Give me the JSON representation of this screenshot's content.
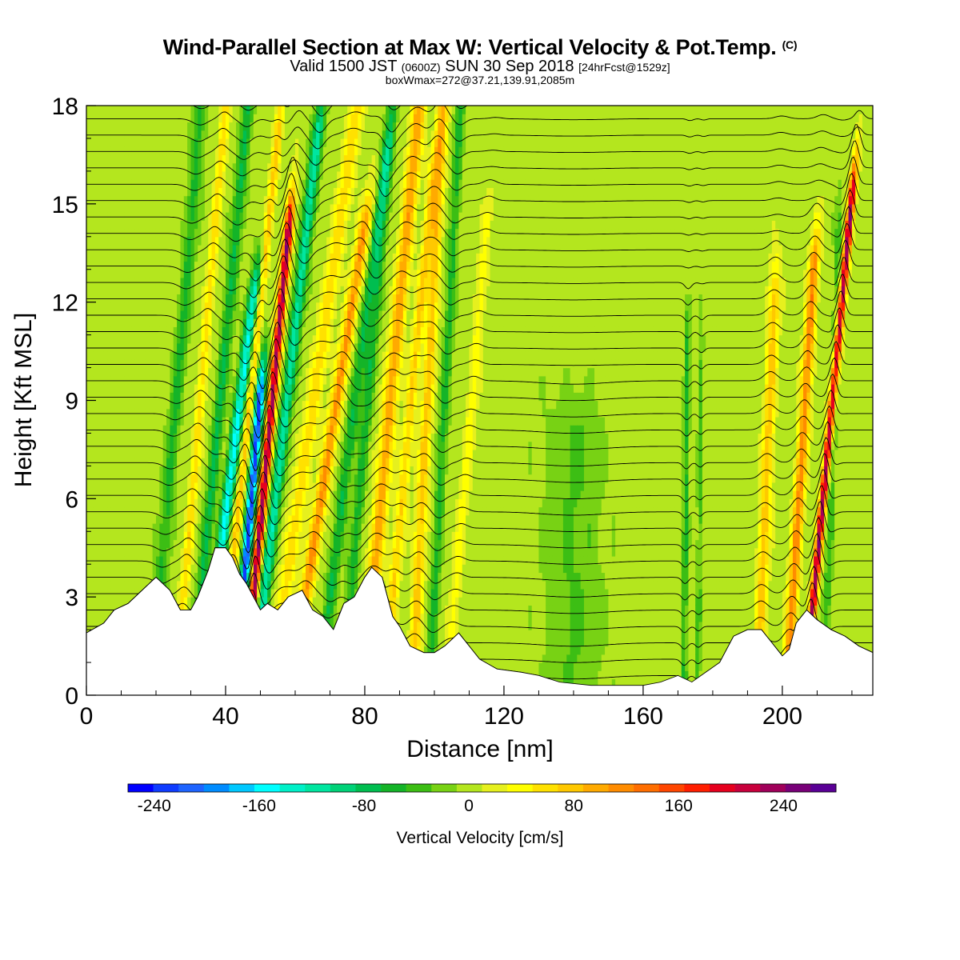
{
  "title": {
    "main": "Wind-Parallel Section at Max W: Vertical Velocity & Pot.Temp.",
    "copyright": "(C)",
    "valid_prefix": "Valid 1500 JST",
    "valid_utc": "(0600Z)",
    "valid_date": "SUN 30 Sep 2018",
    "forecast": "[24hrFcst@1529z]",
    "boxw": "boxWmax=272@37.21,139.91,2085m"
  },
  "chart_data": {
    "type": "heatmap",
    "xlabel": "Distance [nm]",
    "ylabel": "Height [Kft MSL]",
    "xlim": [
      0,
      226
    ],
    "ylim": [
      0,
      18
    ],
    "x_ticks": [
      "0",
      "40",
      "80",
      "120",
      "160",
      "200"
    ],
    "y_ticks": [
      "0",
      "3",
      "6",
      "9",
      "12",
      "15",
      "18"
    ],
    "x_tick_values": [
      0,
      40,
      80,
      120,
      160,
      200
    ],
    "y_tick_values": [
      0,
      3,
      6,
      9,
      12,
      15,
      18
    ],
    "colorbar": {
      "label": "Vertical Velocity [cm/s]",
      "range": [
        -260,
        280
      ],
      "tick_labels": [
        "-240",
        "-160",
        "-80",
        "0",
        "80",
        "160",
        "240"
      ],
      "tick_values": [
        -240,
        -160,
        -80,
        0,
        80,
        160,
        240
      ],
      "colors": [
        "#0000ff",
        "#0f3cff",
        "#1e64ff",
        "#008cff",
        "#00c8ff",
        "#00ffff",
        "#00f0c8",
        "#00e6a0",
        "#00d278",
        "#00be50",
        "#14b428",
        "#3cbe14",
        "#78d214",
        "#b4e61e",
        "#e6f01e",
        "#ffff00",
        "#ffe100",
        "#ffc800",
        "#ffaa00",
        "#ff8c00",
        "#ff6e00",
        "#ff4600",
        "#ff1e00",
        "#e6001e",
        "#c8003c",
        "#a0005a",
        "#780078",
        "#5a0096"
      ]
    },
    "terrain_kft": [
      [
        0,
        1.9
      ],
      [
        5,
        2.2
      ],
      [
        8,
        2.6
      ],
      [
        12,
        2.8
      ],
      [
        16,
        3.2
      ],
      [
        20,
        3.6
      ],
      [
        24,
        3.2
      ],
      [
        27,
        2.6
      ],
      [
        30,
        2.6
      ],
      [
        32,
        3.0
      ],
      [
        35,
        3.8
      ],
      [
        37,
        4.5
      ],
      [
        40,
        4.5
      ],
      [
        42,
        4.2
      ],
      [
        44,
        3.7
      ],
      [
        46,
        3.4
      ],
      [
        48,
        3.0
      ],
      [
        50,
        2.6
      ],
      [
        52,
        2.8
      ],
      [
        55,
        2.6
      ],
      [
        58,
        3.0
      ],
      [
        62,
        3.2
      ],
      [
        65,
        2.6
      ],
      [
        68,
        2.4
      ],
      [
        71,
        2.0
      ],
      [
        74,
        2.8
      ],
      [
        77,
        3.0
      ],
      [
        80,
        3.6
      ],
      [
        82,
        3.9
      ],
      [
        85,
        3.6
      ],
      [
        88,
        2.4
      ],
      [
        90,
        2.1
      ],
      [
        93,
        1.5
      ],
      [
        97,
        1.3
      ],
      [
        100,
        1.3
      ],
      [
        103,
        1.5
      ],
      [
        107,
        1.9
      ],
      [
        110,
        1.5
      ],
      [
        113,
        1.1
      ],
      [
        118,
        0.8
      ],
      [
        125,
        0.7
      ],
      [
        130,
        0.6
      ],
      [
        136,
        0.4
      ],
      [
        145,
        0.3
      ],
      [
        155,
        0.3
      ],
      [
        160,
        0.3
      ],
      [
        165,
        0.4
      ],
      [
        170,
        0.6
      ],
      [
        174,
        0.4
      ],
      [
        178,
        0.7
      ],
      [
        182,
        1.0
      ],
      [
        186,
        1.8
      ],
      [
        190,
        2.0
      ],
      [
        194,
        2.0
      ],
      [
        197,
        1.6
      ],
      [
        200,
        1.2
      ],
      [
        202,
        1.4
      ],
      [
        204,
        2.2
      ],
      [
        207,
        2.6
      ],
      [
        210,
        2.3
      ],
      [
        214,
        2.0
      ],
      [
        218,
        1.8
      ],
      [
        222,
        1.5
      ],
      [
        226,
        1.3
      ]
    ],
    "velocity_features": [
      {
        "x": 21,
        "amp": -55,
        "width": 1.8,
        "tilt": 0.8,
        "ztop": 18
      },
      {
        "x": 28,
        "amp": 60,
        "width": 1.3,
        "tilt": 0.8,
        "ztop": 18
      },
      {
        "x": 33,
        "amp": -70,
        "width": 1.6,
        "tilt": 0.9,
        "ztop": 18
      },
      {
        "x": 37,
        "amp": -150,
        "width": 1.6,
        "tilt": 1.2,
        "ztop": 12
      },
      {
        "x": 41,
        "amp": 80,
        "width": 1.2,
        "tilt": 1.0,
        "ztop": 17
      },
      {
        "x": 45,
        "amp": -230,
        "width": 1.3,
        "tilt": 0.8,
        "ztop": 9
      },
      {
        "x": 48,
        "amp": 240,
        "width": 1.2,
        "tilt": 0.9,
        "ztop": 14
      },
      {
        "x": 51,
        "amp": -120,
        "width": 1.6,
        "tilt": 1.1,
        "ztop": 17
      },
      {
        "x": 57,
        "amp": 60,
        "width": 2.2,
        "tilt": 1.4,
        "ztop": 18
      },
      {
        "x": 63,
        "amp": 110,
        "width": 1.8,
        "tilt": 1.5,
        "ztop": 14
      },
      {
        "x": 70,
        "amp": -70,
        "width": 1.6,
        "tilt": 1.2,
        "ztop": 16
      },
      {
        "x": 76,
        "amp": -60,
        "width": 1.5,
        "tilt": 0.8,
        "ztop": 18
      },
      {
        "x": 82,
        "amp": 100,
        "width": 2.0,
        "tilt": 0.9,
        "ztop": 18
      },
      {
        "x": 88,
        "amp": 70,
        "width": 1.5,
        "tilt": 0.9,
        "ztop": 16
      },
      {
        "x": 95,
        "amp": 80,
        "width": 1.6,
        "tilt": 0.5,
        "ztop": 18
      },
      {
        "x": 100,
        "amp": -55,
        "width": 1.4,
        "tilt": 0.5,
        "ztop": 18
      },
      {
        "x": 106,
        "amp": 40,
        "width": 1.5,
        "tilt": 0.8,
        "ztop": 14
      },
      {
        "x": 140,
        "amp": -30,
        "width": 8,
        "tilt": 0.0,
        "ztop": 8
      },
      {
        "x": 172,
        "amp": -55,
        "width": 0.8,
        "tilt": 0.1,
        "ztop": 11
      },
      {
        "x": 176,
        "amp": -40,
        "width": 0.7,
        "tilt": 0.1,
        "ztop": 10
      },
      {
        "x": 194,
        "amp": 80,
        "width": 1.6,
        "tilt": 0.4,
        "ztop": 12
      },
      {
        "x": 203,
        "amp": 120,
        "width": 1.5,
        "tilt": 0.6,
        "ztop": 13
      },
      {
        "x": 209,
        "amp": 240,
        "width": 1.0,
        "tilt": 0.9,
        "ztop": 15
      },
      {
        "x": 213,
        "amp": -40,
        "width": 1.2,
        "tilt": 0.3,
        "ztop": 14
      }
    ]
  }
}
